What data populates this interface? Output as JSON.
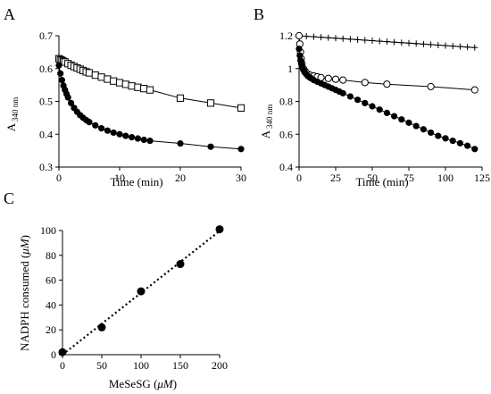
{
  "figure": {
    "panels": [
      {
        "letter": "A"
      },
      {
        "letter": "B"
      },
      {
        "letter": "C"
      }
    ]
  },
  "chart_data": [
    {
      "panel": "A",
      "type": "scatter",
      "xlabel": "Time (min)",
      "ylabel": "A",
      "ylabel_sub": "340 nm",
      "xlim": [
        0,
        30
      ],
      "ylim": [
        0.3,
        0.7
      ],
      "xticks": [
        "0",
        "10",
        "20",
        "30"
      ],
      "yticks": [
        "0.3",
        "0.4",
        "0.5",
        "0.6",
        "0.7"
      ],
      "grid": false,
      "legend": "none",
      "series": [
        {
          "marker": "open-square",
          "fit_line": true,
          "x": [
            0,
            0.25,
            0.5,
            0.75,
            1,
            1.5,
            2,
            2.5,
            3,
            3.5,
            4,
            4.5,
            5,
            6,
            7,
            8,
            9,
            10,
            11,
            12,
            13,
            14,
            15,
            20,
            25,
            30
          ],
          "y": [
            0.63,
            0.627,
            0.625,
            0.622,
            0.62,
            0.615,
            0.61,
            0.606,
            0.602,
            0.598,
            0.594,
            0.59,
            0.587,
            0.58,
            0.574,
            0.568,
            0.562,
            0.557,
            0.552,
            0.547,
            0.543,
            0.539,
            0.535,
            0.51,
            0.495,
            0.48
          ]
        },
        {
          "marker": "filled-circle",
          "fit_line": true,
          "x": [
            0,
            0.25,
            0.5,
            0.75,
            1,
            1.25,
            1.5,
            2,
            2.5,
            3,
            3.5,
            4,
            4.5,
            5,
            6,
            7,
            8,
            9,
            10,
            11,
            12,
            13,
            14,
            15,
            20,
            25,
            30
          ],
          "y": [
            0.61,
            0.585,
            0.565,
            0.548,
            0.535,
            0.523,
            0.512,
            0.495,
            0.48,
            0.468,
            0.458,
            0.45,
            0.443,
            0.437,
            0.427,
            0.418,
            0.411,
            0.405,
            0.4,
            0.395,
            0.391,
            0.387,
            0.383,
            0.38,
            0.372,
            0.362,
            0.355
          ]
        }
      ]
    },
    {
      "panel": "B",
      "type": "scatter",
      "xlabel": "Time (min)",
      "ylabel": "A",
      "ylabel_sub": "340 nm",
      "xlim": [
        0,
        125
      ],
      "ylim": [
        0.4,
        1.2
      ],
      "xticks": [
        "0",
        "25",
        "50",
        "75",
        "100",
        "125"
      ],
      "yticks": [
        "0.4",
        "0.6",
        "0.8",
        "1",
        "1.2"
      ],
      "grid": false,
      "legend": "none",
      "series": [
        {
          "marker": "plus",
          "fit_line": true,
          "x": [
            0,
            5,
            10,
            15,
            20,
            25,
            30,
            35,
            40,
            45,
            50,
            55,
            60,
            65,
            70,
            75,
            80,
            85,
            90,
            95,
            100,
            105,
            110,
            115,
            120
          ],
          "y": [
            1.2,
            1.197,
            1.194,
            1.191,
            1.188,
            1.185,
            1.182,
            1.179,
            1.176,
            1.173,
            1.17,
            1.167,
            1.164,
            1.161,
            1.158,
            1.155,
            1.152,
            1.149,
            1.146,
            1.143,
            1.14,
            1.137,
            1.134,
            1.131,
            1.128
          ]
        },
        {
          "marker": "open-circle",
          "fit_line": true,
          "x": [
            0,
            0.5,
            1,
            1.5,
            2,
            3,
            4,
            5,
            7.5,
            10,
            12.5,
            15,
            20,
            25,
            30,
            45,
            60,
            90,
            120
          ],
          "y": [
            1.2,
            1.15,
            1.1,
            1.06,
            1.03,
            1.0,
            0.985,
            0.975,
            0.96,
            0.955,
            0.95,
            0.945,
            0.94,
            0.935,
            0.93,
            0.915,
            0.905,
            0.89,
            0.87
          ]
        },
        {
          "marker": "filled-circle",
          "fit_line": true,
          "x": [
            0,
            0.5,
            1,
            1.5,
            2,
            3,
            4,
            5,
            6,
            7,
            8,
            10,
            12.5,
            15,
            17.5,
            20,
            22.5,
            25,
            27.5,
            30,
            35,
            40,
            45,
            50,
            55,
            60,
            65,
            70,
            75,
            80,
            85,
            90,
            95,
            100,
            105,
            110,
            115,
            120
          ],
          "y": [
            1.12,
            1.08,
            1.05,
            1.03,
            1.01,
            0.99,
            0.975,
            0.965,
            0.955,
            0.948,
            0.942,
            0.93,
            0.92,
            0.91,
            0.9,
            0.89,
            0.88,
            0.87,
            0.86,
            0.85,
            0.83,
            0.81,
            0.79,
            0.77,
            0.75,
            0.73,
            0.71,
            0.69,
            0.67,
            0.65,
            0.63,
            0.61,
            0.59,
            0.575,
            0.56,
            0.545,
            0.53,
            0.51
          ]
        }
      ]
    },
    {
      "panel": "C",
      "type": "scatter",
      "xlabel": "MeSeSG (",
      "xlabel_unit": "μM",
      "ylabel": "NADPH consumed (",
      "ylabel_unit": "μM",
      "xlim": [
        0,
        200
      ],
      "ylim": [
        0,
        100
      ],
      "xticks": [
        "0",
        "50",
        "100",
        "150",
        "200"
      ],
      "yticks": [
        "0",
        "20",
        "40",
        "60",
        "80",
        "100"
      ],
      "grid": false,
      "legend": "none",
      "trendline": "dotted linear",
      "series": [
        {
          "marker": "filled-circle",
          "x": [
            0,
            50,
            100,
            150,
            200
          ],
          "y": [
            2,
            22,
            51,
            73,
            101
          ]
        }
      ]
    }
  ]
}
